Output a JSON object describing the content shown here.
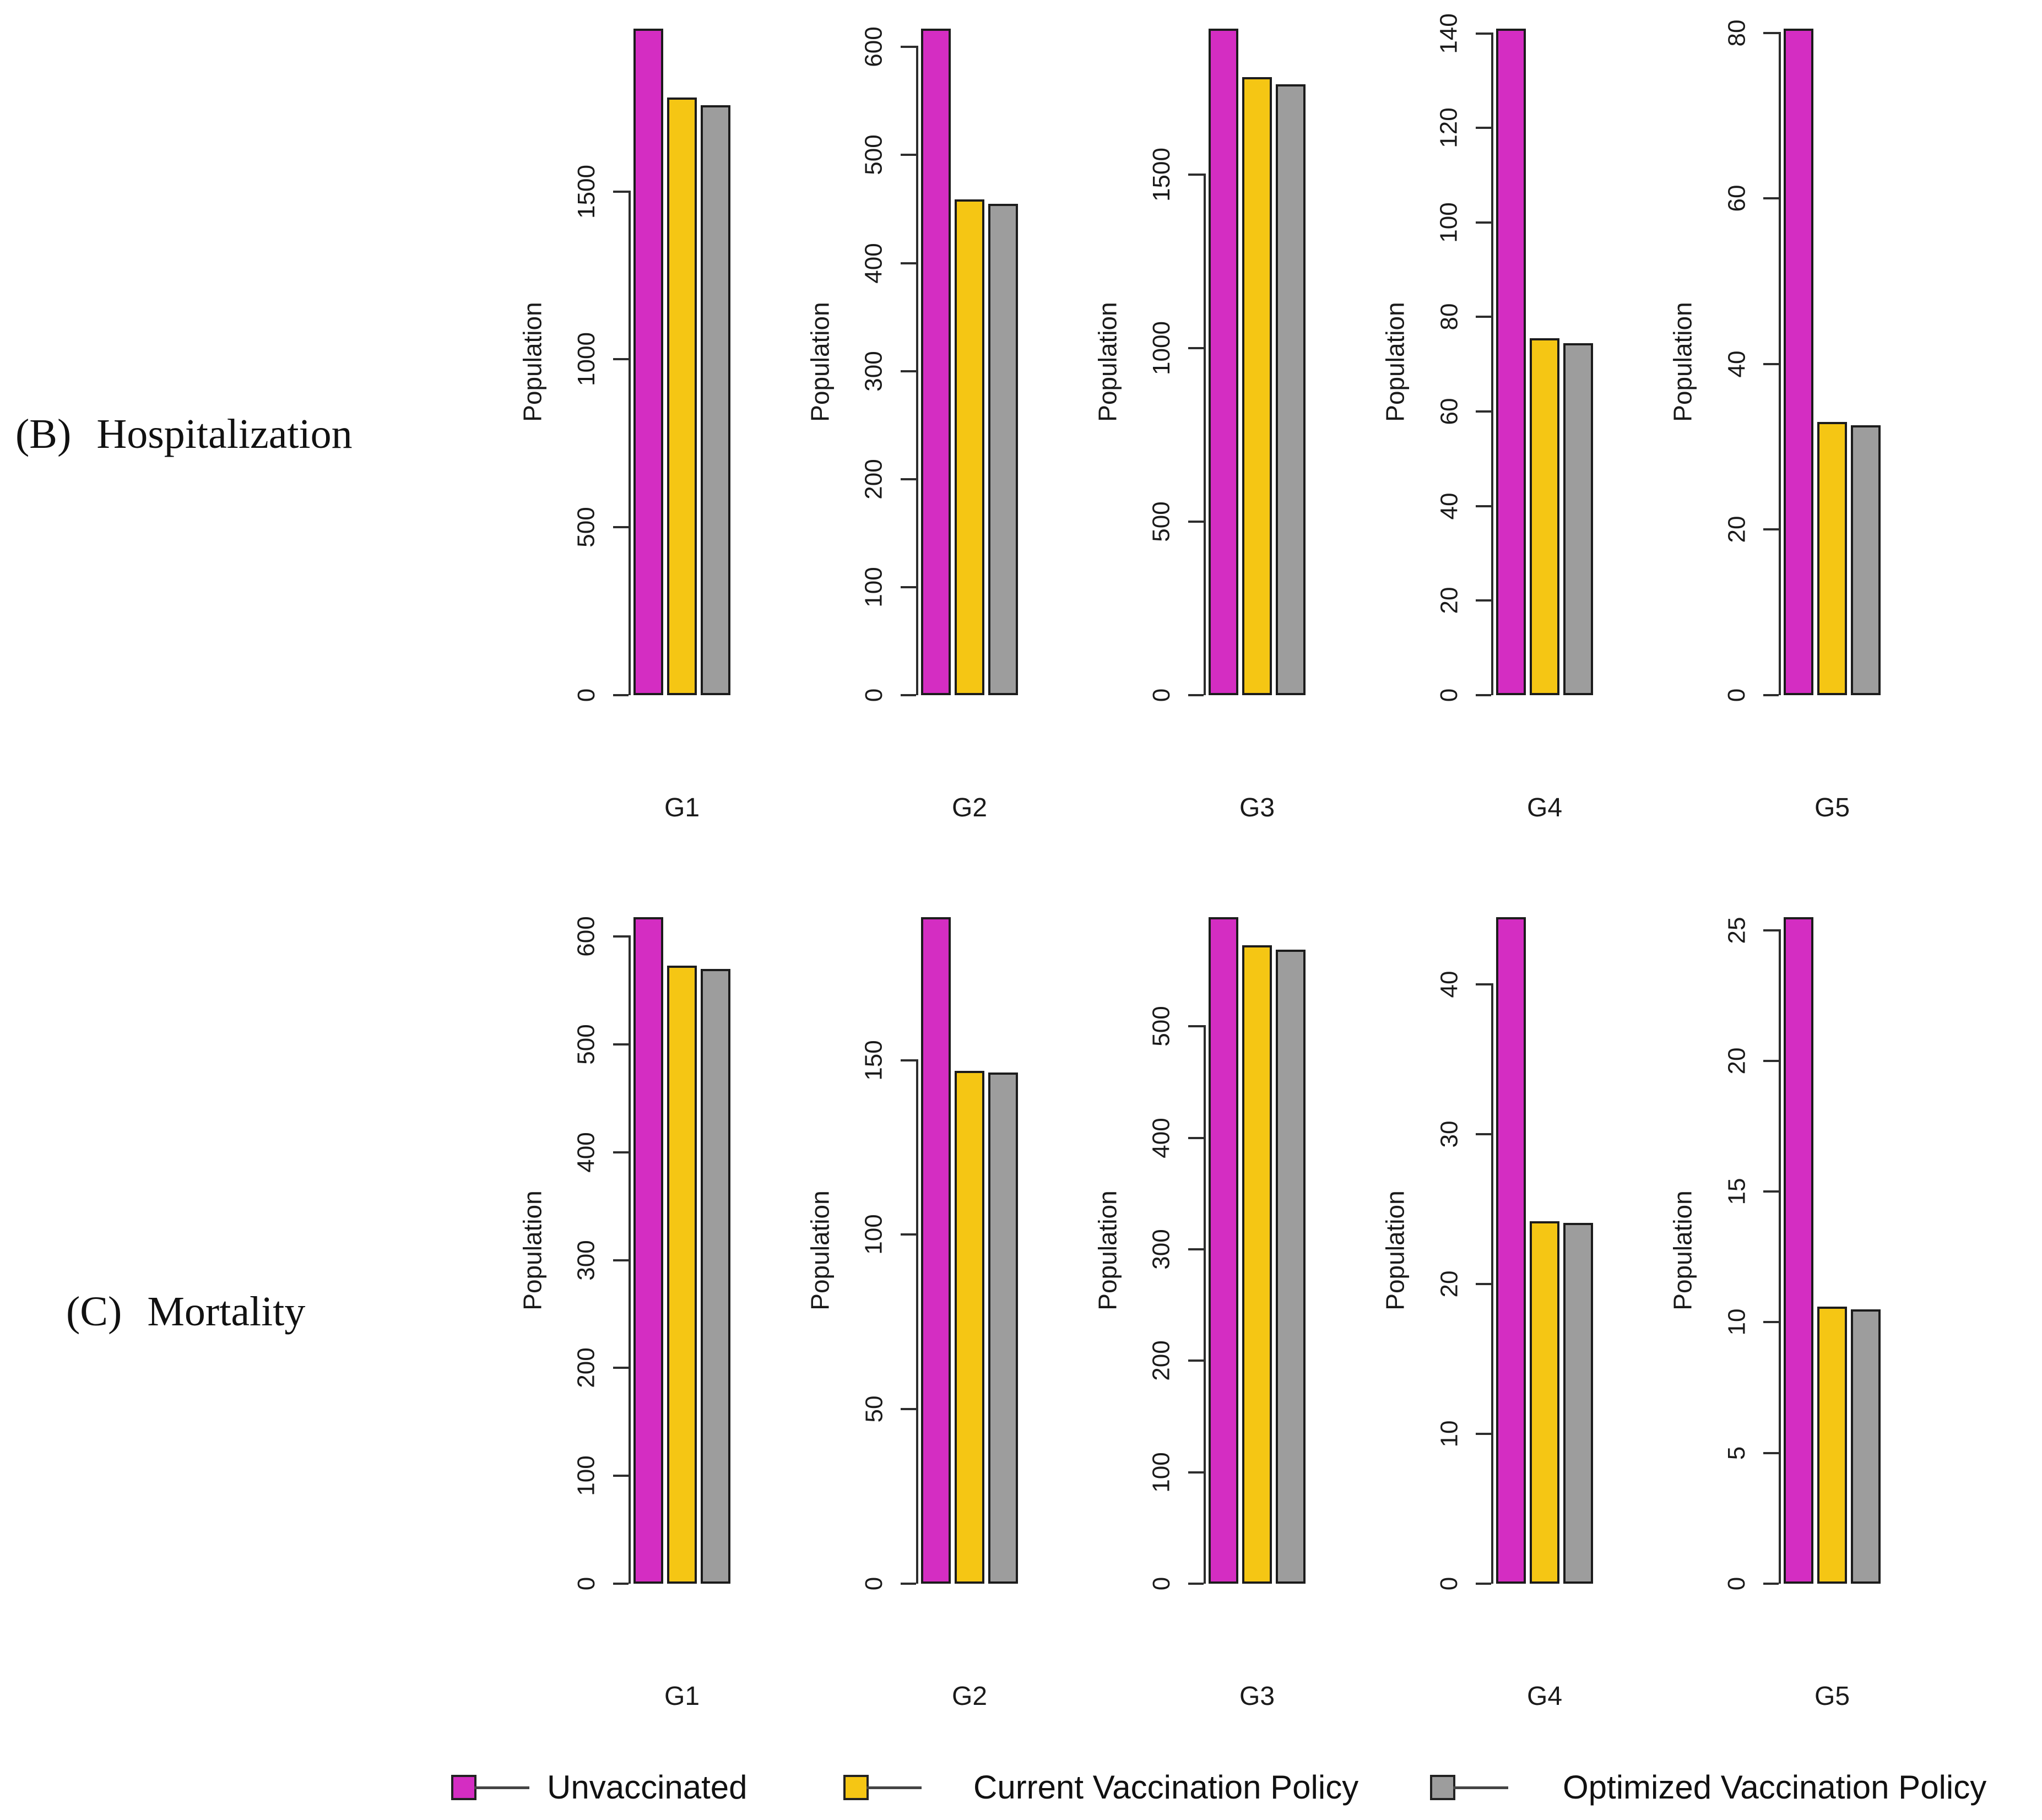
{
  "figure": {
    "panels": [
      {
        "label": "(B)",
        "title": "Hospitalization"
      },
      {
        "label": "(C)",
        "title": "Mortality"
      }
    ],
    "legend": [
      {
        "label": "Unvaccinated",
        "color": "#D42DC2"
      },
      {
        "label": "Current Vaccination Policy",
        "color": "#F5C614"
      },
      {
        "label": "Optimized Vaccination Policy",
        "color": "#9D9D9D"
      }
    ],
    "axis_color": "#2d2d2d",
    "bar_border_color": "#1c1c1c"
  },
  "chart_data": [
    {
      "type": "bar",
      "panel": "(B) Hospitalization",
      "ylabel": "Population",
      "categories": [
        "G1",
        "G2",
        "G3",
        "G4",
        "G5"
      ],
      "series": [
        {
          "name": "Unvaccinated",
          "values": [
            1985,
            617,
            1920,
            141,
            80.5
          ]
        },
        {
          "name": "Current Vaccination Policy",
          "values": [
            1780,
            459,
            1780,
            75.5,
            33
          ]
        },
        {
          "name": "Optimized Vaccination Policy",
          "values": [
            1757,
            455,
            1760,
            74.5,
            32.6
          ]
        }
      ],
      "yticks_per_category": [
        [
          0,
          500,
          1000,
          1500
        ],
        [
          0,
          100,
          200,
          300,
          400,
          500,
          600
        ],
        [
          0,
          500,
          1000,
          1500
        ],
        [
          0,
          20,
          40,
          60,
          80,
          100,
          120,
          140
        ],
        [
          0,
          20,
          40,
          60,
          80
        ]
      ],
      "ylim_per_category": [
        [
          0,
          1985
        ],
        [
          0,
          617
        ],
        [
          0,
          1920
        ],
        [
          0,
          141
        ],
        [
          0,
          80.5
        ]
      ],
      "grid": false,
      "legend_position": "bottom"
    },
    {
      "type": "bar",
      "panel": "(C) Mortality",
      "ylabel": "Population",
      "categories": [
        "G1",
        "G2",
        "G3",
        "G4",
        "G5"
      ],
      "series": [
        {
          "name": "Unvaccinated",
          "values": [
            618,
            191,
            598,
            44.5,
            25.5
          ]
        },
        {
          "name": "Current Vaccination Policy",
          "values": [
            573,
            147,
            573,
            24.2,
            10.6
          ]
        },
        {
          "name": "Optimized Vaccination Policy",
          "values": [
            570,
            146.5,
            569,
            24.1,
            10.5
          ]
        }
      ],
      "yticks_per_category": [
        [
          0,
          100,
          200,
          300,
          400,
          500,
          600
        ],
        [
          0,
          50,
          100,
          150
        ],
        [
          0,
          100,
          200,
          300,
          400,
          500
        ],
        [
          0,
          10,
          20,
          30,
          40
        ],
        [
          0,
          5,
          10,
          15,
          20,
          25
        ]
      ],
      "ylim_per_category": [
        [
          0,
          618
        ],
        [
          0,
          191
        ],
        [
          0,
          598
        ],
        [
          0,
          44.5
        ],
        [
          0,
          25.5
        ]
      ],
      "grid": false,
      "legend_position": "bottom"
    }
  ]
}
